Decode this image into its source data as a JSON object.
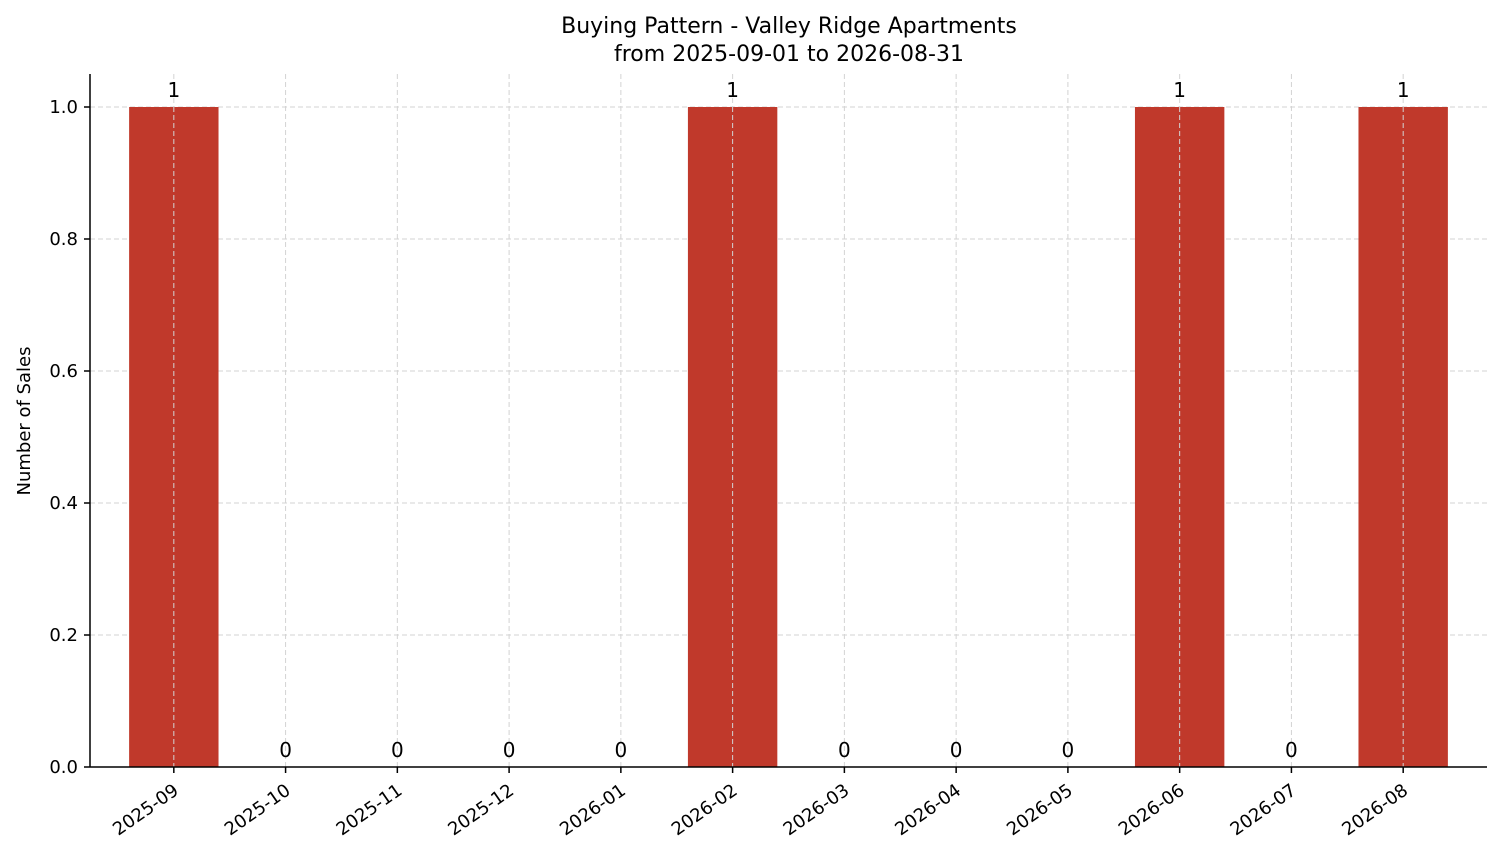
{
  "chart_data": {
    "type": "bar",
    "title": "Buying Pattern - Valley Ridge Apartments",
    "subtitle": "from 2025-09-01 to 2026-08-31",
    "xlabel": "",
    "ylabel": "Number of Sales",
    "categories": [
      "2025-09",
      "2025-10",
      "2025-11",
      "2025-12",
      "2026-01",
      "2026-02",
      "2026-03",
      "2026-04",
      "2026-05",
      "2026-06",
      "2026-07",
      "2026-08"
    ],
    "values": [
      1,
      0,
      0,
      0,
      0,
      1,
      0,
      0,
      0,
      1,
      0,
      1
    ],
    "data_labels": [
      "1",
      "0",
      "0",
      "0",
      "0",
      "1",
      "0",
      "0",
      "0",
      "1",
      "0",
      "1"
    ],
    "ylim": [
      0,
      1.05
    ],
    "yticks": [
      "0.0",
      "0.2",
      "0.4",
      "0.6",
      "0.8",
      "1.0"
    ],
    "grid": true,
    "legend": "none",
    "bar_color": "#c0392b"
  }
}
